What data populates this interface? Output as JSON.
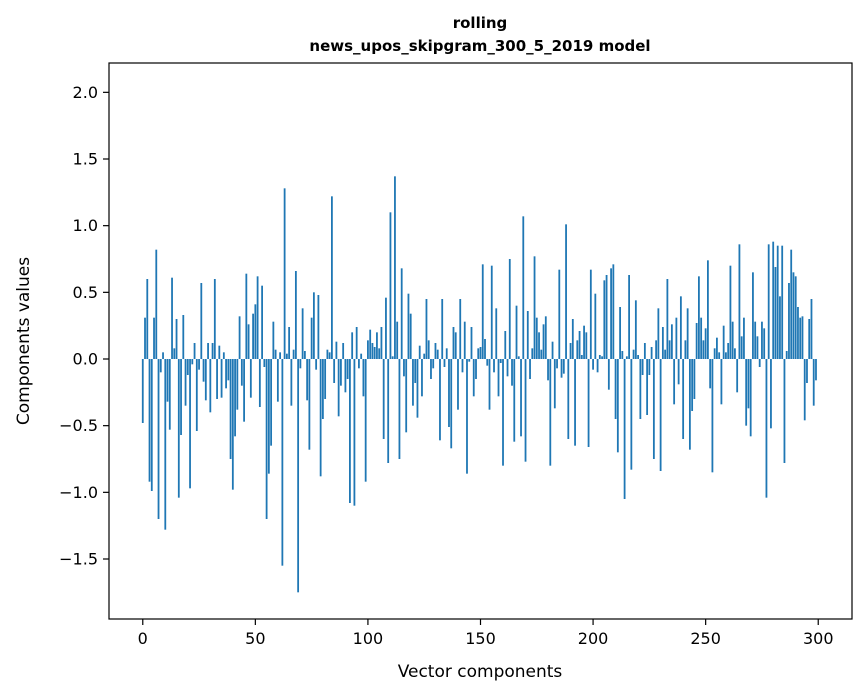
{
  "chart_data": {
    "type": "bar",
    "title": "rolling",
    "subtitle": "news_upos_skipgram_300_5_2019 model",
    "xlabel": "Vector components",
    "ylabel": "Components values",
    "xlim": [
      -15,
      315
    ],
    "ylim": [
      -1.95,
      2.22
    ],
    "xticks": [
      0,
      50,
      100,
      150,
      200,
      250,
      300
    ],
    "xtick_labels": [
      "0",
      "50",
      "100",
      "150",
      "200",
      "250",
      "300"
    ],
    "yticks": [
      -1.5,
      -1.0,
      -0.5,
      0.0,
      0.5,
      1.0,
      1.5,
      2.0
    ],
    "ytick_labels": [
      "−1.5",
      "−1.0",
      "−0.5",
      "0.0",
      "0.5",
      "1.0",
      "1.5",
      "2.0"
    ],
    "grid": false,
    "bar_color": "#1f77b4",
    "values": [
      -0.48,
      0.31,
      0.6,
      -0.92,
      -0.99,
      0.31,
      0.82,
      -1.2,
      -0.1,
      0.05,
      -1.28,
      -0.32,
      -0.53,
      0.61,
      0.08,
      0.3,
      -1.04,
      -0.57,
      0.33,
      -0.35,
      -0.12,
      -0.97,
      -0.04,
      0.12,
      -0.54,
      -0.08,
      0.57,
      -0.17,
      -0.31,
      0.12,
      -0.4,
      0.12,
      0.6,
      -0.3,
      0.1,
      -0.29,
      0.05,
      -0.22,
      -0.16,
      -0.75,
      -0.98,
      -0.58,
      -0.38,
      0.32,
      -0.2,
      -0.47,
      0.64,
      0.26,
      -0.29,
      0.34,
      0.41,
      0.62,
      -0.36,
      0.55,
      -0.06,
      -1.2,
      -0.86,
      -0.65,
      0.28,
      0.07,
      -0.32,
      0.05,
      -1.55,
      1.28,
      0.04,
      0.24,
      -0.35,
      0.07,
      0.66,
      -1.75,
      -0.07,
      0.38,
      0.06,
      -0.31,
      -0.68,
      0.31,
      0.5,
      -0.08,
      0.48,
      -0.88,
      -0.45,
      -0.3,
      0.07,
      0.05,
      1.22,
      -0.18,
      0.13,
      -0.43,
      -0.2,
      0.12,
      -0.25,
      -0.15,
      -1.08,
      0.2,
      -1.1,
      0.24,
      -0.07,
      0.04,
      -0.28,
      -0.92,
      0.14,
      0.22,
      0.12,
      0.09,
      0.2,
      0.08,
      0.24,
      -0.6,
      0.46,
      -0.78,
      1.1,
      0.02,
      1.37,
      0.28,
      -0.75,
      0.68,
      -0.13,
      -0.55,
      0.49,
      0.34,
      -0.35,
      -0.18,
      -0.44,
      0.1,
      -0.28,
      0.04,
      0.45,
      0.14,
      -0.15,
      -0.07,
      0.12,
      0.07,
      -0.61,
      0.45,
      -0.06,
      0.08,
      -0.51,
      -0.67,
      0.24,
      0.2,
      -0.38,
      0.45,
      -0.1,
      0.28,
      -0.86,
      -0.02,
      0.24,
      -0.28,
      -0.15,
      0.08,
      0.09,
      0.71,
      0.15,
      -0.05,
      -0.38,
      0.7,
      -0.1,
      0.38,
      -0.28,
      -0.03,
      -0.8,
      0.21,
      -0.13,
      0.75,
      -0.2,
      -0.62,
      0.4,
      0.02,
      -0.58,
      1.07,
      -0.77,
      0.36,
      -0.15,
      0.08,
      0.77,
      0.31,
      0.2,
      0.07,
      0.26,
      0.32,
      -0.16,
      -0.8,
      0.13,
      -0.37,
      -0.07,
      0.67,
      -0.14,
      -0.11,
      1.01,
      -0.6,
      0.12,
      0.3,
      -0.65,
      0.14,
      0.21,
      0.03,
      0.25,
      0.2,
      -0.66,
      0.67,
      -0.08,
      0.49,
      -0.1,
      0.03,
      0.02,
      0.59,
      0.63,
      -0.23,
      0.68,
      0.71,
      -0.45,
      -0.7,
      0.39,
      0.06,
      -1.05,
      0.02,
      0.63,
      -0.83,
      0.07,
      0.44,
      0.03,
      -0.45,
      -0.12,
      0.12,
      -0.42,
      -0.12,
      0.09,
      -0.75,
      0.14,
      0.38,
      -0.84,
      0.24,
      0.07,
      0.6,
      0.14,
      0.26,
      -0.34,
      0.31,
      -0.19,
      0.47,
      -0.6,
      0.14,
      0.38,
      -0.68,
      -0.39,
      -0.3,
      0.27,
      0.62,
      0.31,
      0.14,
      0.23,
      0.74,
      -0.22,
      -0.85,
      0.08,
      0.16,
      0.05,
      -0.34,
      0.25,
      0.05,
      0.12,
      0.7,
      0.28,
      0.08,
      -0.25,
      0.86,
      0.17,
      0.31,
      -0.5,
      -0.37,
      -0.58,
      0.65,
      0.28,
      0.17,
      -0.06,
      0.28,
      0.23,
      -1.04,
      0.86,
      -0.52,
      0.88,
      0.69,
      0.85,
      0.47,
      0.85,
      -0.78,
      0.06,
      0.57,
      0.82,
      0.65,
      0.62,
      0.39,
      0.31,
      0.32,
      -0.46,
      -0.18,
      0.3,
      0.45,
      -0.35,
      -0.16
    ]
  }
}
